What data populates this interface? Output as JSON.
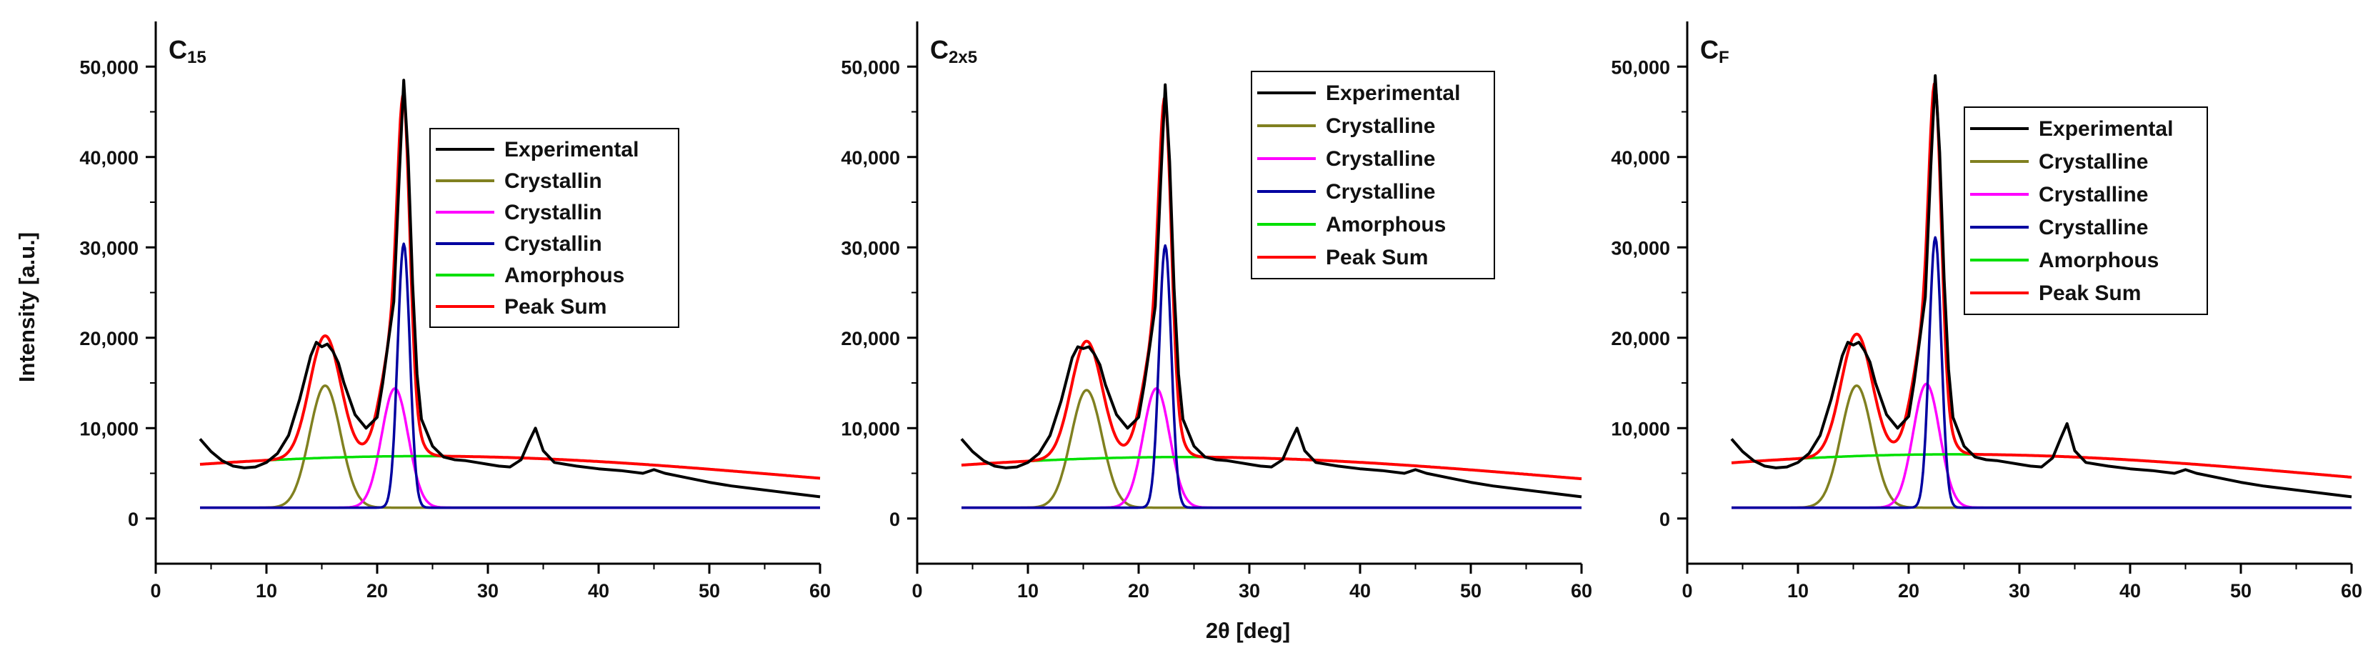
{
  "figure": {
    "shared_xlabel": "2θ [deg]",
    "shared_ylabel": "Intensity [a.u.]"
  },
  "colors": {
    "experimental": "#000000",
    "crystalline_1": "#808020",
    "crystalline_2": "#ff00ff",
    "crystalline_3": "#0000a0",
    "amorphous": "#00e000",
    "peak_sum": "#ff0000"
  },
  "chart_data": [
    {
      "type": "line",
      "panel_label": {
        "main": "C",
        "sub": "15"
      },
      "xlabel": "2θ [deg]",
      "ylabel": "Intensity [a.u.]",
      "xlim": [
        0,
        60
      ],
      "ylim": [
        -5000,
        55000
      ],
      "xticks": [
        "0",
        "10",
        "20",
        "30",
        "40",
        "50",
        "60"
      ],
      "yticks": [
        "0",
        "10,000",
        "20,000",
        "30,000",
        "40,000",
        "50,000"
      ],
      "legend_position": "top-right",
      "legend": [
        "Experimental",
        "Crystallin",
        "Crystallin",
        "Crystallin",
        "Amorphous",
        "Peak Sum"
      ],
      "series": [
        {
          "name": "Experimental",
          "x": [
            4,
            5,
            6,
            7,
            8,
            9,
            10,
            11,
            12,
            13,
            14,
            14.5,
            15,
            15.5,
            16,
            16.5,
            17,
            18,
            19,
            20,
            20.5,
            21,
            21.5,
            22,
            22.4,
            22.8,
            23.2,
            23.6,
            24,
            25,
            26,
            27,
            28,
            29,
            30,
            31,
            32,
            33,
            33.7,
            34.3,
            35,
            36,
            37,
            38,
            40,
            42,
            44,
            45,
            46,
            48,
            50,
            52,
            54,
            56,
            58,
            60
          ],
          "y": [
            8800,
            7400,
            6400,
            5800,
            5600,
            5700,
            6200,
            7200,
            9200,
            13200,
            18000,
            19500,
            19000,
            19300,
            18500,
            17200,
            15000,
            11500,
            10000,
            11200,
            15000,
            19500,
            24000,
            38000,
            48500,
            40000,
            26000,
            16000,
            11000,
            8000,
            6800,
            6500,
            6400,
            6200,
            6000,
            5800,
            5700,
            6500,
            8500,
            10000,
            7500,
            6200,
            6000,
            5800,
            5500,
            5300,
            5000,
            5400,
            5000,
            4500,
            4000,
            3600,
            3300,
            3000,
            2700,
            2400
          ]
        },
        {
          "name": "Crystallin",
          "gaussian": {
            "center": 15.3,
            "amplitude": 13500,
            "sigma": 1.4
          }
        },
        {
          "name": "Crystallin",
          "gaussian": {
            "center": 21.6,
            "amplitude": 13200,
            "sigma": 1.2
          }
        },
        {
          "name": "Crystallin",
          "gaussian": {
            "center": 22.4,
            "amplitude": 29200,
            "sigma": 0.55
          }
        },
        {
          "name": "Amorphous",
          "gaussian": {
            "center": 24,
            "amplitude": 5700,
            "sigma": 34
          }
        },
        {
          "name": "Peak Sum",
          "sum_of": [
            "Crystallin",
            "Crystallin",
            "Crystallin",
            "Amorphous"
          ]
        }
      ],
      "baseline": 1200
    },
    {
      "type": "line",
      "panel_label": {
        "main": "C",
        "sub": "2x5"
      },
      "xlabel": "2θ [deg]",
      "ylabel": "Intensity [a.u.]",
      "xlim": [
        0,
        60
      ],
      "ylim": [
        -5000,
        55000
      ],
      "xticks": [
        "0",
        "10",
        "20",
        "30",
        "40",
        "50",
        "60"
      ],
      "yticks": [
        "0",
        "10,000",
        "20,000",
        "30,000",
        "40,000",
        "50,000"
      ],
      "legend_position": "top-right",
      "legend": [
        "Experimental",
        "Crystalline",
        "Crystalline",
        "Crystalline",
        "Amorphous",
        "Peak Sum"
      ],
      "series": [
        {
          "name": "Experimental",
          "x": [
            4,
            5,
            6,
            7,
            8,
            9,
            10,
            11,
            12,
            13,
            14,
            14.5,
            15,
            15.5,
            16,
            16.5,
            17,
            18,
            19,
            20,
            20.5,
            21,
            21.5,
            22,
            22.4,
            22.8,
            23.2,
            23.6,
            24,
            25,
            26,
            27,
            28,
            29,
            30,
            31,
            32,
            33,
            33.7,
            34.3,
            35,
            36,
            37,
            38,
            40,
            42,
            44,
            45,
            46,
            48,
            50,
            52,
            54,
            56,
            58,
            60
          ],
          "y": [
            8800,
            7400,
            6400,
            5800,
            5600,
            5700,
            6200,
            7200,
            9200,
            13000,
            17800,
            19000,
            18800,
            19000,
            18200,
            17000,
            14800,
            11500,
            10000,
            11200,
            14800,
            19000,
            23500,
            37500,
            48000,
            39500,
            25500,
            16000,
            11000,
            8000,
            6800,
            6500,
            6400,
            6200,
            6000,
            5800,
            5700,
            6500,
            8500,
            10000,
            7500,
            6200,
            6000,
            5800,
            5500,
            5300,
            5000,
            5400,
            5000,
            4500,
            4000,
            3600,
            3300,
            3000,
            2700,
            2400
          ]
        },
        {
          "name": "Crystalline",
          "gaussian": {
            "center": 15.3,
            "amplitude": 13000,
            "sigma": 1.4
          }
        },
        {
          "name": "Crystalline",
          "gaussian": {
            "center": 21.6,
            "amplitude": 13200,
            "sigma": 1.2
          }
        },
        {
          "name": "Crystalline",
          "gaussian": {
            "center": 22.4,
            "amplitude": 29000,
            "sigma": 0.55
          }
        },
        {
          "name": "Amorphous",
          "gaussian": {
            "center": 24,
            "amplitude": 5600,
            "sigma": 34
          }
        },
        {
          "name": "Peak Sum",
          "sum_of": [
            "Crystalline",
            "Crystalline",
            "Crystalline",
            "Amorphous"
          ]
        }
      ],
      "baseline": 1200
    },
    {
      "type": "line",
      "panel_label": {
        "main": "C",
        "sub": "F"
      },
      "xlabel": "2θ [deg]",
      "ylabel": "Intensity [a.u.]",
      "xlim": [
        0,
        60
      ],
      "ylim": [
        -5000,
        55000
      ],
      "xticks": [
        "0",
        "10",
        "20",
        "30",
        "40",
        "50",
        "60"
      ],
      "yticks": [
        "0",
        "10,000",
        "20,000",
        "30,000",
        "40,000",
        "50,000"
      ],
      "legend_position": "top-right",
      "legend": [
        "Experimental",
        "Crystalline",
        "Crystalline",
        "Crystalline",
        "Amorphous",
        "Peak Sum"
      ],
      "series": [
        {
          "name": "Experimental",
          "x": [
            4,
            5,
            6,
            7,
            8,
            9,
            10,
            11,
            12,
            13,
            14,
            14.5,
            15,
            15.5,
            16,
            16.5,
            17,
            18,
            19,
            20,
            20.5,
            21,
            21.5,
            22,
            22.4,
            22.8,
            23.2,
            23.6,
            24,
            25,
            26,
            27,
            28,
            29,
            30,
            31,
            32,
            33,
            33.7,
            34.3,
            35,
            36,
            37,
            38,
            40,
            42,
            44,
            45,
            46,
            48,
            50,
            52,
            54,
            56,
            58,
            60
          ],
          "y": [
            8800,
            7400,
            6400,
            5800,
            5600,
            5700,
            6200,
            7200,
            9200,
            13200,
            18000,
            19500,
            19200,
            19500,
            18600,
            17300,
            15000,
            11500,
            10000,
            11300,
            15200,
            19800,
            24500,
            39000,
            49000,
            40500,
            26500,
            16500,
            11200,
            8000,
            6800,
            6500,
            6400,
            6200,
            6000,
            5800,
            5700,
            6700,
            8800,
            10500,
            7500,
            6200,
            6000,
            5800,
            5500,
            5300,
            5000,
            5400,
            5000,
            4500,
            4000,
            3600,
            3300,
            3000,
            2700,
            2400
          ]
        },
        {
          "name": "Crystalline",
          "gaussian": {
            "center": 15.3,
            "amplitude": 13500,
            "sigma": 1.4
          }
        },
        {
          "name": "Crystalline",
          "gaussian": {
            "center": 21.6,
            "amplitude": 13700,
            "sigma": 1.2
          }
        },
        {
          "name": "Crystalline",
          "gaussian": {
            "center": 22.4,
            "amplitude": 29900,
            "sigma": 0.55
          }
        },
        {
          "name": "Amorphous",
          "gaussian": {
            "center": 24,
            "amplitude": 5900,
            "sigma": 34
          }
        },
        {
          "name": "Peak Sum",
          "sum_of": [
            "Crystalline",
            "Crystalline",
            "Crystalline",
            "Amorphous"
          ]
        }
      ],
      "baseline": 1200
    }
  ]
}
